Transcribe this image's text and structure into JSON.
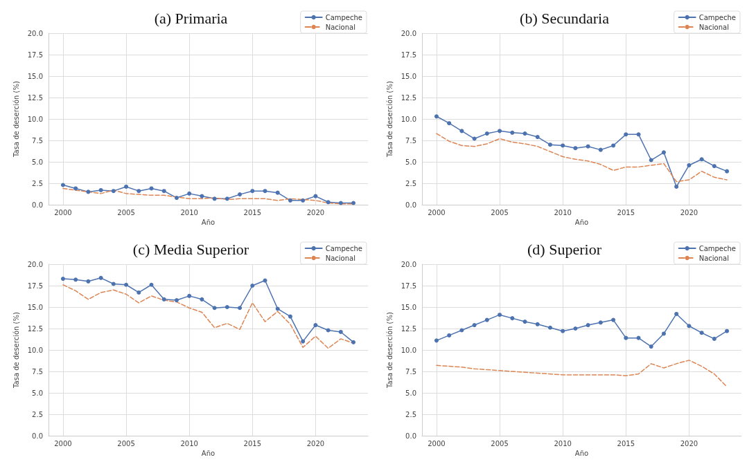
{
  "chart_data": [
    {
      "type": "line",
      "title": "(a) Primaria",
      "xlabel": "Año",
      "ylabel": "Tasa de deserción (%)",
      "x": [
        2000,
        2001,
        2002,
        2003,
        2004,
        2005,
        2006,
        2007,
        2008,
        2009,
        2010,
        2011,
        2012,
        2013,
        2014,
        2015,
        2016,
        2017,
        2018,
        2019,
        2020,
        2021,
        2022,
        2023
      ],
      "xlim": [
        1998.85,
        2024.15
      ],
      "xticks": [
        2000,
        2005,
        2010,
        2015,
        2020
      ],
      "ylim": [
        0,
        20
      ],
      "yticks": [
        {
          "value": 0,
          "label": "0.0"
        },
        {
          "value": 2.5,
          "label": "2.5"
        },
        {
          "value": 5,
          "label": "5.0"
        },
        {
          "value": 7.5,
          "label": "7.5"
        },
        {
          "value": 10,
          "label": "10.0"
        },
        {
          "value": 12.5,
          "label": "12.5"
        },
        {
          "value": 15,
          "label": "15.0"
        },
        {
          "value": 17.5,
          "label": "17.5"
        },
        {
          "value": 20,
          "label": "20.0"
        }
      ],
      "grid": true,
      "legend": "top right",
      "series": [
        {
          "name": "Campeche",
          "color": "#4c72b0",
          "marker": "circle",
          "line_style": "solid",
          "values": [
            2.3,
            1.9,
            1.5,
            1.7,
            1.6,
            2.1,
            1.6,
            1.9,
            1.6,
            0.8,
            1.3,
            1.0,
            0.7,
            0.7,
            1.2,
            1.6,
            1.6,
            1.4,
            0.5,
            0.5,
            1.0,
            0.3,
            0.2,
            0.2
          ]
        },
        {
          "name": "Nacional",
          "color": "#dd8452",
          "marker": "none",
          "line_style": "dashed",
          "values": [
            1.9,
            1.7,
            1.5,
            1.3,
            1.7,
            1.3,
            1.2,
            1.1,
            1.1,
            0.9,
            0.7,
            0.7,
            0.8,
            0.6,
            0.7,
            0.7,
            0.7,
            0.5,
            0.7,
            0.6,
            0.5,
            0.2,
            0.1,
            0.1
          ]
        }
      ]
    },
    {
      "type": "line",
      "title": "(b) Secundaria",
      "xlabel": "Año",
      "ylabel": "Tasa de deserción (%)",
      "x": [
        2000,
        2001,
        2002,
        2003,
        2004,
        2005,
        2006,
        2007,
        2008,
        2009,
        2010,
        2011,
        2012,
        2013,
        2014,
        2015,
        2016,
        2017,
        2018,
        2019,
        2020,
        2021,
        2022,
        2023
      ],
      "xlim": [
        1998.85,
        2024.15
      ],
      "xticks": [
        2000,
        2005,
        2010,
        2015,
        2020
      ],
      "ylim": [
        0,
        20
      ],
      "yticks": [
        {
          "value": 0,
          "label": "0.0"
        },
        {
          "value": 2.5,
          "label": "2.5"
        },
        {
          "value": 5,
          "label": "5.0"
        },
        {
          "value": 7.5,
          "label": "7.5"
        },
        {
          "value": 10,
          "label": "10.0"
        },
        {
          "value": 12.5,
          "label": "12.5"
        },
        {
          "value": 15,
          "label": "15.0"
        },
        {
          "value": 17.5,
          "label": "17.5"
        },
        {
          "value": 20,
          "label": "20.0"
        }
      ],
      "grid": true,
      "legend": "top right",
      "series": [
        {
          "name": "Campeche",
          "color": "#4c72b0",
          "marker": "circle",
          "line_style": "solid",
          "values": [
            10.3,
            9.5,
            8.6,
            7.7,
            8.3,
            8.6,
            8.4,
            8.3,
            7.9,
            7.0,
            6.9,
            6.6,
            6.8,
            6.4,
            6.9,
            8.2,
            8.2,
            5.2,
            6.1,
            2.1,
            4.6,
            5.3,
            4.5,
            3.9
          ]
        },
        {
          "name": "Nacional",
          "color": "#dd8452",
          "marker": "none",
          "line_style": "dashed",
          "values": [
            8.3,
            7.4,
            6.9,
            6.8,
            7.1,
            7.7,
            7.3,
            7.1,
            6.8,
            6.2,
            5.6,
            5.3,
            5.1,
            4.7,
            4.0,
            4.4,
            4.4,
            4.6,
            4.8,
            2.7,
            2.9,
            3.9,
            3.2,
            2.9
          ]
        }
      ]
    },
    {
      "type": "line",
      "title": "(c) Media Superior",
      "xlabel": "Año",
      "ylabel": "Tasa de deserción (%)",
      "x": [
        2000,
        2001,
        2002,
        2003,
        2004,
        2005,
        2006,
        2007,
        2008,
        2009,
        2010,
        2011,
        2012,
        2013,
        2014,
        2015,
        2016,
        2017,
        2018,
        2019,
        2020,
        2021,
        2022,
        2023
      ],
      "xlim": [
        1998.85,
        2024.15
      ],
      "xticks": [
        2000,
        2005,
        2010,
        2015,
        2020
      ],
      "ylim": [
        0,
        20
      ],
      "yticks": [
        {
          "value": 0,
          "label": "0.0"
        },
        {
          "value": 2.5,
          "label": "2.5"
        },
        {
          "value": 5,
          "label": "5.0"
        },
        {
          "value": 7.5,
          "label": "7.5"
        },
        {
          "value": 10,
          "label": "10.0"
        },
        {
          "value": 12.5,
          "label": "12.5"
        },
        {
          "value": 15,
          "label": "15.0"
        },
        {
          "value": 17.5,
          "label": "17.5"
        },
        {
          "value": 20,
          "label": "20.0"
        }
      ],
      "grid": true,
      "legend": "top right",
      "series": [
        {
          "name": "Campeche",
          "color": "#4c72b0",
          "marker": "circle",
          "line_style": "solid",
          "values": [
            18.3,
            18.2,
            18.0,
            18.4,
            17.7,
            17.6,
            16.7,
            17.6,
            15.9,
            15.8,
            16.3,
            15.9,
            14.9,
            15.0,
            14.9,
            17.5,
            18.1,
            14.8,
            13.9,
            11.0,
            12.9,
            12.3,
            12.1,
            10.9
          ]
        },
        {
          "name": "Nacional",
          "color": "#dd8452",
          "marker": "none",
          "line_style": "dashed",
          "values": [
            17.6,
            16.9,
            15.9,
            16.7,
            17.0,
            16.5,
            15.5,
            16.3,
            15.8,
            15.6,
            14.9,
            14.4,
            12.6,
            13.1,
            12.4,
            15.5,
            13.3,
            14.5,
            13.0,
            10.3,
            11.6,
            10.2,
            11.3,
            10.8
          ]
        }
      ]
    },
    {
      "type": "line",
      "title": "(d) Superior",
      "xlabel": "Año",
      "ylabel": "Tasa de deserción (%)",
      "x": [
        2000,
        2001,
        2002,
        2003,
        2004,
        2005,
        2006,
        2007,
        2008,
        2009,
        2010,
        2011,
        2012,
        2013,
        2014,
        2015,
        2016,
        2017,
        2018,
        2019,
        2020,
        2021,
        2022,
        2023
      ],
      "xlim": [
        1998.85,
        2024.15
      ],
      "xticks": [
        2000,
        2005,
        2010,
        2015,
        2020
      ],
      "ylim": [
        0,
        20
      ],
      "yticks": [
        {
          "value": 0,
          "label": "0.0"
        },
        {
          "value": 2.5,
          "label": "2.5"
        },
        {
          "value": 5,
          "label": "5.0"
        },
        {
          "value": 7.5,
          "label": "7.5"
        },
        {
          "value": 10,
          "label": "10.0"
        },
        {
          "value": 12.5,
          "label": "12.5"
        },
        {
          "value": 15,
          "label": "15.0"
        },
        {
          "value": 17.5,
          "label": "17.5"
        },
        {
          "value": 20,
          "label": "20.0"
        }
      ],
      "grid": true,
      "legend": "top right",
      "series": [
        {
          "name": "Campeche",
          "color": "#4c72b0",
          "marker": "circle",
          "line_style": "solid",
          "values": [
            11.1,
            11.7,
            12.3,
            12.9,
            13.5,
            14.1,
            13.7,
            13.3,
            13.0,
            12.6,
            12.2,
            12.5,
            12.9,
            13.2,
            13.5,
            11.4,
            11.4,
            10.4,
            11.9,
            14.2,
            12.8,
            12.0,
            11.3,
            12.2
          ]
        },
        {
          "name": "Nacional",
          "color": "#dd8452",
          "marker": "none",
          "line_style": "dashed",
          "values": [
            8.2,
            8.1,
            8.0,
            7.8,
            7.7,
            7.6,
            7.5,
            7.4,
            7.3,
            7.2,
            7.1,
            7.1,
            7.1,
            7.1,
            7.1,
            7.0,
            7.2,
            8.4,
            7.9,
            8.4,
            8.8,
            8.1,
            7.2,
            5.7
          ]
        }
      ]
    }
  ]
}
